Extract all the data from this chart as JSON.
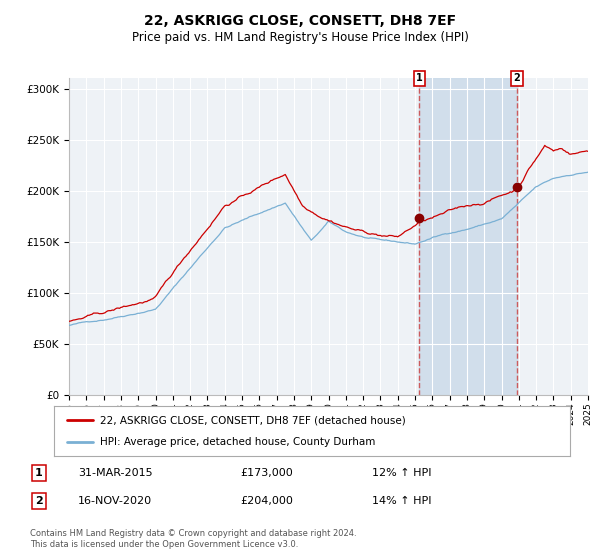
{
  "title": "22, ASKRIGG CLOSE, CONSETT, DH8 7EF",
  "subtitle": "Price paid vs. HM Land Registry's House Price Index (HPI)",
  "ylim": [
    0,
    310000
  ],
  "yticks": [
    0,
    50000,
    100000,
    150000,
    200000,
    250000,
    300000
  ],
  "ytick_labels": [
    "£0",
    "£50K",
    "£100K",
    "£150K",
    "£200K",
    "£250K",
    "£300K"
  ],
  "x_start_year": 1995,
  "x_end_year": 2025,
  "sale1_date": 2015.25,
  "sale1_price": 173000,
  "sale1_label": "31-MAR-2015",
  "sale1_pct": "12%",
  "sale2_date": 2020.88,
  "sale2_price": 204000,
  "sale2_label": "16-NOV-2020",
  "sale2_pct": "14%",
  "legend1_text": "22, ASKRIGG CLOSE, CONSETT, DH8 7EF (detached house)",
  "legend2_text": "HPI: Average price, detached house, County Durham",
  "footer_text": "Contains HM Land Registry data © Crown copyright and database right 2024.\nThis data is licensed under the Open Government Licence v3.0.",
  "red_line_color": "#cc0000",
  "blue_line_color": "#7ab0d4",
  "bg_color": "#eef2f6",
  "shade_color": "#c8d8e8",
  "grid_color": "#ffffff",
  "sale_marker_color": "#880000",
  "annotation_box_color": "#cc0000",
  "title_fontsize": 10,
  "subtitle_fontsize": 8.5,
  "tick_fontsize": 7.5,
  "legend_fontsize": 7.5,
  "table_fontsize": 8,
  "footer_fontsize": 6.0
}
